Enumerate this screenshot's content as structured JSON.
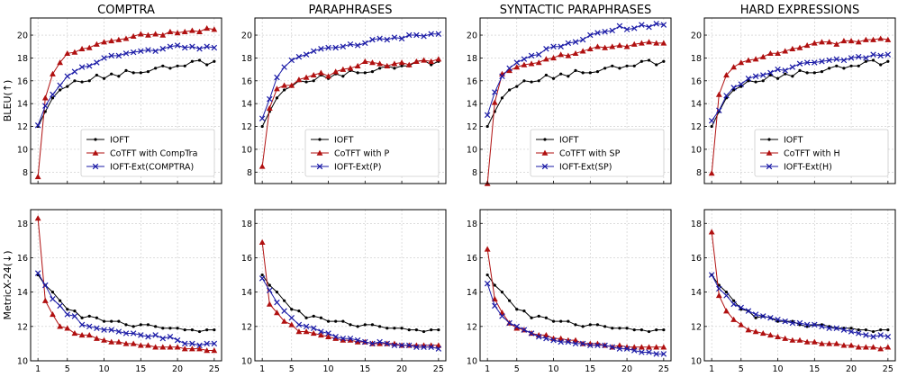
{
  "chart_data": {
    "type": "line",
    "x": [
      1,
      2,
      3,
      4,
      5,
      6,
      7,
      8,
      9,
      10,
      11,
      12,
      13,
      14,
      15,
      16,
      17,
      18,
      19,
      20,
      21,
      22,
      23,
      24,
      25
    ],
    "xticks": [
      1,
      5,
      10,
      15,
      20,
      25
    ],
    "colors": {
      "IOFT": "#000000",
      "CoTFT": "#b01010",
      "Ext": "#1a1aa6"
    },
    "rows": [
      {
        "ylabel": "BLEU(↑)",
        "ylim": [
          7,
          21.5
        ],
        "yticks": [
          8,
          10,
          12,
          14,
          16,
          18,
          20
        ],
        "legend_loc": "lower-right"
      },
      {
        "ylabel": "MetricX-24(↓)",
        "ylim": [
          10,
          18.8
        ],
        "yticks": [
          10,
          12,
          14,
          16,
          18
        ],
        "legend_loc": "upper-right"
      }
    ],
    "columns": [
      {
        "title": "COMPTRA",
        "legend": [
          "IOFT",
          "CoTFT with CompTra",
          "IOFT-Ext(COMPTRA)"
        ],
        "bleu": {
          "IOFT": [
            12.0,
            13.3,
            14.5,
            15.2,
            15.5,
            16.0,
            15.9,
            16.0,
            16.5,
            16.2,
            16.6,
            16.4,
            16.9,
            16.7,
            16.7,
            16.8,
            17.1,
            17.3,
            17.1,
            17.3,
            17.3,
            17.7,
            17.8,
            17.4,
            17.7
          ],
          "CoTFT": [
            7.6,
            14.5,
            16.6,
            17.6,
            18.4,
            18.5,
            18.8,
            18.9,
            19.2,
            19.4,
            19.5,
            19.6,
            19.7,
            19.9,
            20.1,
            20.0,
            20.1,
            20.0,
            20.3,
            20.2,
            20.3,
            20.4,
            20.3,
            20.6,
            20.5
          ],
          "Ext": [
            12.1,
            13.8,
            14.8,
            15.6,
            16.4,
            16.8,
            17.2,
            17.3,
            17.6,
            18.0,
            18.2,
            18.2,
            18.4,
            18.5,
            18.6,
            18.7,
            18.6,
            18.8,
            19.0,
            19.1,
            18.9,
            19.0,
            18.8,
            19.0,
            18.9
          ]
        },
        "metricx": {
          "IOFT": [
            15.0,
            14.4,
            14.0,
            13.5,
            13.0,
            12.9,
            12.5,
            12.6,
            12.5,
            12.3,
            12.3,
            12.3,
            12.1,
            12.0,
            12.1,
            12.1,
            12.0,
            11.9,
            11.9,
            11.9,
            11.8,
            11.8,
            11.7,
            11.8,
            11.8
          ],
          "CoTFT": [
            18.3,
            13.5,
            12.7,
            12.0,
            11.9,
            11.6,
            11.5,
            11.5,
            11.3,
            11.2,
            11.1,
            11.1,
            11.0,
            11.0,
            10.9,
            10.9,
            10.8,
            10.8,
            10.8,
            10.8,
            10.7,
            10.7,
            10.7,
            10.6,
            10.6
          ],
          "Ext": [
            15.1,
            14.4,
            13.6,
            13.2,
            12.7,
            12.6,
            12.1,
            12.0,
            11.9,
            11.8,
            11.8,
            11.7,
            11.6,
            11.6,
            11.5,
            11.4,
            11.5,
            11.3,
            11.4,
            11.2,
            11.0,
            11.0,
            10.9,
            11.0,
            11.0
          ]
        }
      },
      {
        "title": "PARAPHRASES",
        "legend": [
          "IOFT",
          "CoTFT with P",
          "IOFT-Ext(P)"
        ],
        "bleu": {
          "IOFT": [
            12.0,
            13.3,
            14.5,
            15.2,
            15.5,
            16.0,
            15.9,
            16.0,
            16.5,
            16.2,
            16.6,
            16.4,
            16.9,
            16.7,
            16.7,
            16.8,
            17.1,
            17.3,
            17.1,
            17.3,
            17.3,
            17.7,
            17.8,
            17.4,
            17.7
          ],
          "CoTFT": [
            8.5,
            13.6,
            15.3,
            15.6,
            15.6,
            16.1,
            16.3,
            16.5,
            16.7,
            16.4,
            16.8,
            17.0,
            17.1,
            17.3,
            17.7,
            17.6,
            17.5,
            17.3,
            17.5,
            17.6,
            17.4,
            17.7,
            17.8,
            17.7,
            17.9
          ],
          "Ext": [
            12.7,
            14.4,
            16.3,
            17.2,
            17.8,
            18.1,
            18.3,
            18.6,
            18.8,
            18.9,
            18.9,
            19.0,
            19.2,
            19.1,
            19.3,
            19.6,
            19.7,
            19.6,
            19.8,
            19.7,
            20.0,
            20.0,
            19.9,
            20.1,
            20.1
          ]
        },
        "metricx": {
          "IOFT": [
            15.0,
            14.4,
            14.0,
            13.5,
            13.0,
            12.9,
            12.5,
            12.6,
            12.5,
            12.3,
            12.3,
            12.3,
            12.1,
            12.0,
            12.1,
            12.1,
            12.0,
            11.9,
            11.9,
            11.9,
            11.8,
            11.8,
            11.7,
            11.8,
            11.8
          ],
          "CoTFT": [
            16.9,
            13.3,
            12.8,
            12.3,
            12.1,
            11.7,
            11.7,
            11.6,
            11.5,
            11.4,
            11.3,
            11.2,
            11.2,
            11.1,
            11.1,
            11.0,
            11.0,
            11.0,
            11.0,
            10.9,
            10.9,
            10.9,
            10.9,
            10.9,
            10.9
          ],
          "Ext": [
            14.8,
            14.1,
            13.4,
            12.9,
            12.5,
            12.1,
            12.0,
            11.9,
            11.7,
            11.6,
            11.4,
            11.3,
            11.3,
            11.2,
            11.1,
            11.0,
            11.1,
            11.0,
            10.9,
            10.9,
            10.9,
            10.8,
            10.8,
            10.8,
            10.7
          ]
        }
      },
      {
        "title": "SYNTACTIC PARAPHRASES",
        "legend": [
          "IOFT",
          "CoTFT with SP",
          "IOFT-Ext(SP)"
        ],
        "bleu": {
          "IOFT": [
            12.0,
            13.3,
            14.5,
            15.2,
            15.5,
            16.0,
            15.9,
            16.0,
            16.5,
            16.2,
            16.6,
            16.4,
            16.9,
            16.7,
            16.7,
            16.8,
            17.1,
            17.3,
            17.1,
            17.3,
            17.3,
            17.7,
            17.8,
            17.4,
            17.7
          ],
          "CoTFT": [
            7.0,
            14.1,
            16.6,
            16.9,
            17.2,
            17.4,
            17.5,
            17.6,
            17.9,
            18.0,
            18.3,
            18.2,
            18.4,
            18.6,
            18.8,
            19.0,
            18.9,
            19.0,
            19.1,
            19.0,
            19.2,
            19.3,
            19.4,
            19.3,
            19.3
          ],
          "Ext": [
            13.0,
            15.0,
            16.4,
            17.1,
            17.6,
            17.9,
            18.2,
            18.3,
            18.8,
            19.0,
            19.0,
            19.3,
            19.4,
            19.6,
            20.0,
            20.2,
            20.3,
            20.4,
            20.8,
            20.5,
            20.6,
            20.9,
            20.7,
            21.0,
            20.9
          ]
        },
        "metricx": {
          "IOFT": [
            15.0,
            14.4,
            14.0,
            13.5,
            13.0,
            12.9,
            12.5,
            12.6,
            12.5,
            12.3,
            12.3,
            12.3,
            12.1,
            12.0,
            12.1,
            12.1,
            12.0,
            11.9,
            11.9,
            11.9,
            11.8,
            11.8,
            11.7,
            11.8,
            11.8
          ],
          "CoTFT": [
            16.5,
            13.6,
            12.8,
            12.2,
            11.9,
            11.8,
            11.6,
            11.5,
            11.5,
            11.3,
            11.3,
            11.2,
            11.2,
            11.0,
            11.0,
            11.0,
            10.9,
            10.8,
            10.9,
            10.8,
            10.8,
            10.8,
            10.8,
            10.8,
            10.8
          ],
          "Ext": [
            14.5,
            13.2,
            12.6,
            12.2,
            12.0,
            11.8,
            11.6,
            11.4,
            11.3,
            11.2,
            11.1,
            11.1,
            11.0,
            11.0,
            10.9,
            10.9,
            10.9,
            10.8,
            10.7,
            10.7,
            10.6,
            10.5,
            10.5,
            10.4,
            10.4
          ]
        }
      },
      {
        "title": "HARD EXPRESSIONS",
        "legend": [
          "IOFT",
          "CoTFT with H",
          "IOFT-Ext(H)"
        ],
        "bleu": {
          "IOFT": [
            12.0,
            13.3,
            14.5,
            15.2,
            15.5,
            16.0,
            15.9,
            16.0,
            16.5,
            16.2,
            16.6,
            16.4,
            16.9,
            16.7,
            16.7,
            16.8,
            17.1,
            17.3,
            17.1,
            17.3,
            17.3,
            17.7,
            17.8,
            17.4,
            17.7
          ],
          "CoTFT": [
            7.9,
            14.8,
            16.5,
            17.2,
            17.6,
            17.8,
            17.9,
            18.1,
            18.4,
            18.4,
            18.6,
            18.8,
            18.9,
            19.1,
            19.3,
            19.4,
            19.4,
            19.2,
            19.5,
            19.5,
            19.4,
            19.6,
            19.6,
            19.7,
            19.6
          ],
          "Ext": [
            12.5,
            13.4,
            14.7,
            15.4,
            15.7,
            16.2,
            16.4,
            16.5,
            16.7,
            17.0,
            16.9,
            17.2,
            17.5,
            17.6,
            17.6,
            17.7,
            17.8,
            17.9,
            17.8,
            18.0,
            18.1,
            18.0,
            18.3,
            18.2,
            18.3
          ]
        },
        "metricx": {
          "IOFT": [
            15.0,
            14.4,
            14.0,
            13.5,
            13.0,
            12.9,
            12.5,
            12.6,
            12.5,
            12.3,
            12.3,
            12.3,
            12.1,
            12.0,
            12.1,
            12.1,
            12.0,
            11.9,
            11.9,
            11.9,
            11.8,
            11.8,
            11.7,
            11.8,
            11.8
          ],
          "CoTFT": [
            17.5,
            13.8,
            12.9,
            12.4,
            12.1,
            11.8,
            11.7,
            11.6,
            11.5,
            11.4,
            11.3,
            11.2,
            11.2,
            11.1,
            11.1,
            11.0,
            11.0,
            11.0,
            10.9,
            10.9,
            10.8,
            10.8,
            10.8,
            10.7,
            10.8
          ],
          "Ext": [
            15.0,
            14.2,
            13.8,
            13.3,
            13.1,
            12.9,
            12.7,
            12.6,
            12.5,
            12.4,
            12.3,
            12.2,
            12.2,
            12.1,
            12.1,
            12.0,
            11.9,
            11.9,
            11.8,
            11.7,
            11.6,
            11.5,
            11.4,
            11.5,
            11.4
          ]
        }
      }
    ]
  }
}
